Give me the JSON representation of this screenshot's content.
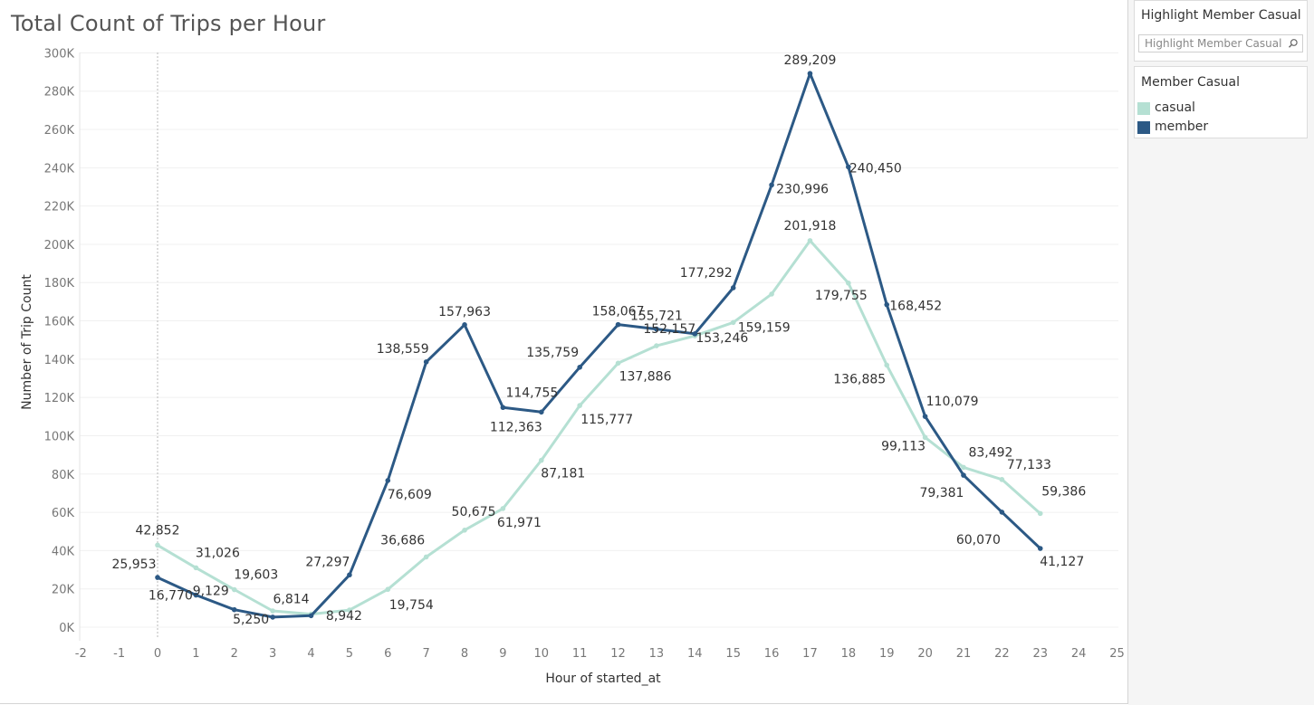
{
  "chart_data": {
    "type": "line",
    "title": "Total Count of Trips per Hour",
    "xlabel": "Hour of started_at",
    "ylabel": "Number of Trip Count",
    "xlim": [
      -2,
      25
    ],
    "ylim": [
      0,
      300000
    ],
    "x_ticks": [
      "-2",
      "-1",
      "0",
      "1",
      "2",
      "3",
      "4",
      "5",
      "6",
      "7",
      "8",
      "9",
      "10",
      "11",
      "12",
      "13",
      "14",
      "15",
      "16",
      "17",
      "18",
      "19",
      "20",
      "21",
      "22",
      "23",
      "24",
      "25"
    ],
    "y_ticks": [
      "0K",
      "20K",
      "40K",
      "60K",
      "80K",
      "100K",
      "120K",
      "140K",
      "160K",
      "180K",
      "200K",
      "220K",
      "240K",
      "260K",
      "280K",
      "300K"
    ],
    "grid": true,
    "x": [
      0,
      1,
      2,
      3,
      4,
      5,
      6,
      7,
      8,
      9,
      10,
      11,
      12,
      13,
      14,
      15,
      16,
      17,
      18,
      19,
      20,
      21,
      22,
      23
    ],
    "series": [
      {
        "name": "casual",
        "color": "#b5e0d3",
        "values": [
          42852,
          31026,
          19603,
          8500,
          6814,
          8942,
          19754,
          36686,
          50675,
          61971,
          87181,
          115777,
          137886,
          147000,
          152157,
          159159,
          174000,
          201918,
          179755,
          136885,
          99113,
          83492,
          77133,
          59386
        ],
        "data_labels": [
          "42,852",
          "31,026",
          "19,603",
          "",
          "6,814",
          "8,942",
          "19,754",
          "36,686",
          "50,675",
          "61,971",
          "87,181",
          "115,777",
          "137,886",
          "",
          "152,157",
          "159,159",
          "",
          "201,918",
          "179,755",
          "136,885",
          "99,113",
          "83,492",
          "77,133",
          "59,386"
        ]
      },
      {
        "name": "member",
        "color": "#2c5985",
        "values": [
          25953,
          16770,
          9129,
          5250,
          6000,
          27297,
          76609,
          138559,
          157963,
          114755,
          112363,
          135759,
          158067,
          155721,
          153246,
          177292,
          230996,
          289209,
          240450,
          168452,
          110079,
          79381,
          60070,
          41127
        ],
        "data_labels": [
          "25,953",
          "16,770",
          "9,129",
          "5,250",
          "",
          "27,297",
          "76,609",
          "138,559",
          "157,963",
          "114,755",
          "112,363",
          "135,759",
          "158,067",
          "155,721",
          "153,246",
          "177,292",
          "230,996",
          "289,209",
          "240,450",
          "168,452",
          "110,079",
          "79,381",
          "60,070",
          "41,127"
        ]
      }
    ]
  },
  "highlight": {
    "title": "Highlight Member Casual",
    "placeholder": "Highlight Member Casual",
    "icon": "search-icon"
  },
  "legend": {
    "title": "Member Casual",
    "items": [
      {
        "label": "casual",
        "color": "#b5e0d3"
      },
      {
        "label": "member",
        "color": "#2c5985"
      }
    ]
  }
}
